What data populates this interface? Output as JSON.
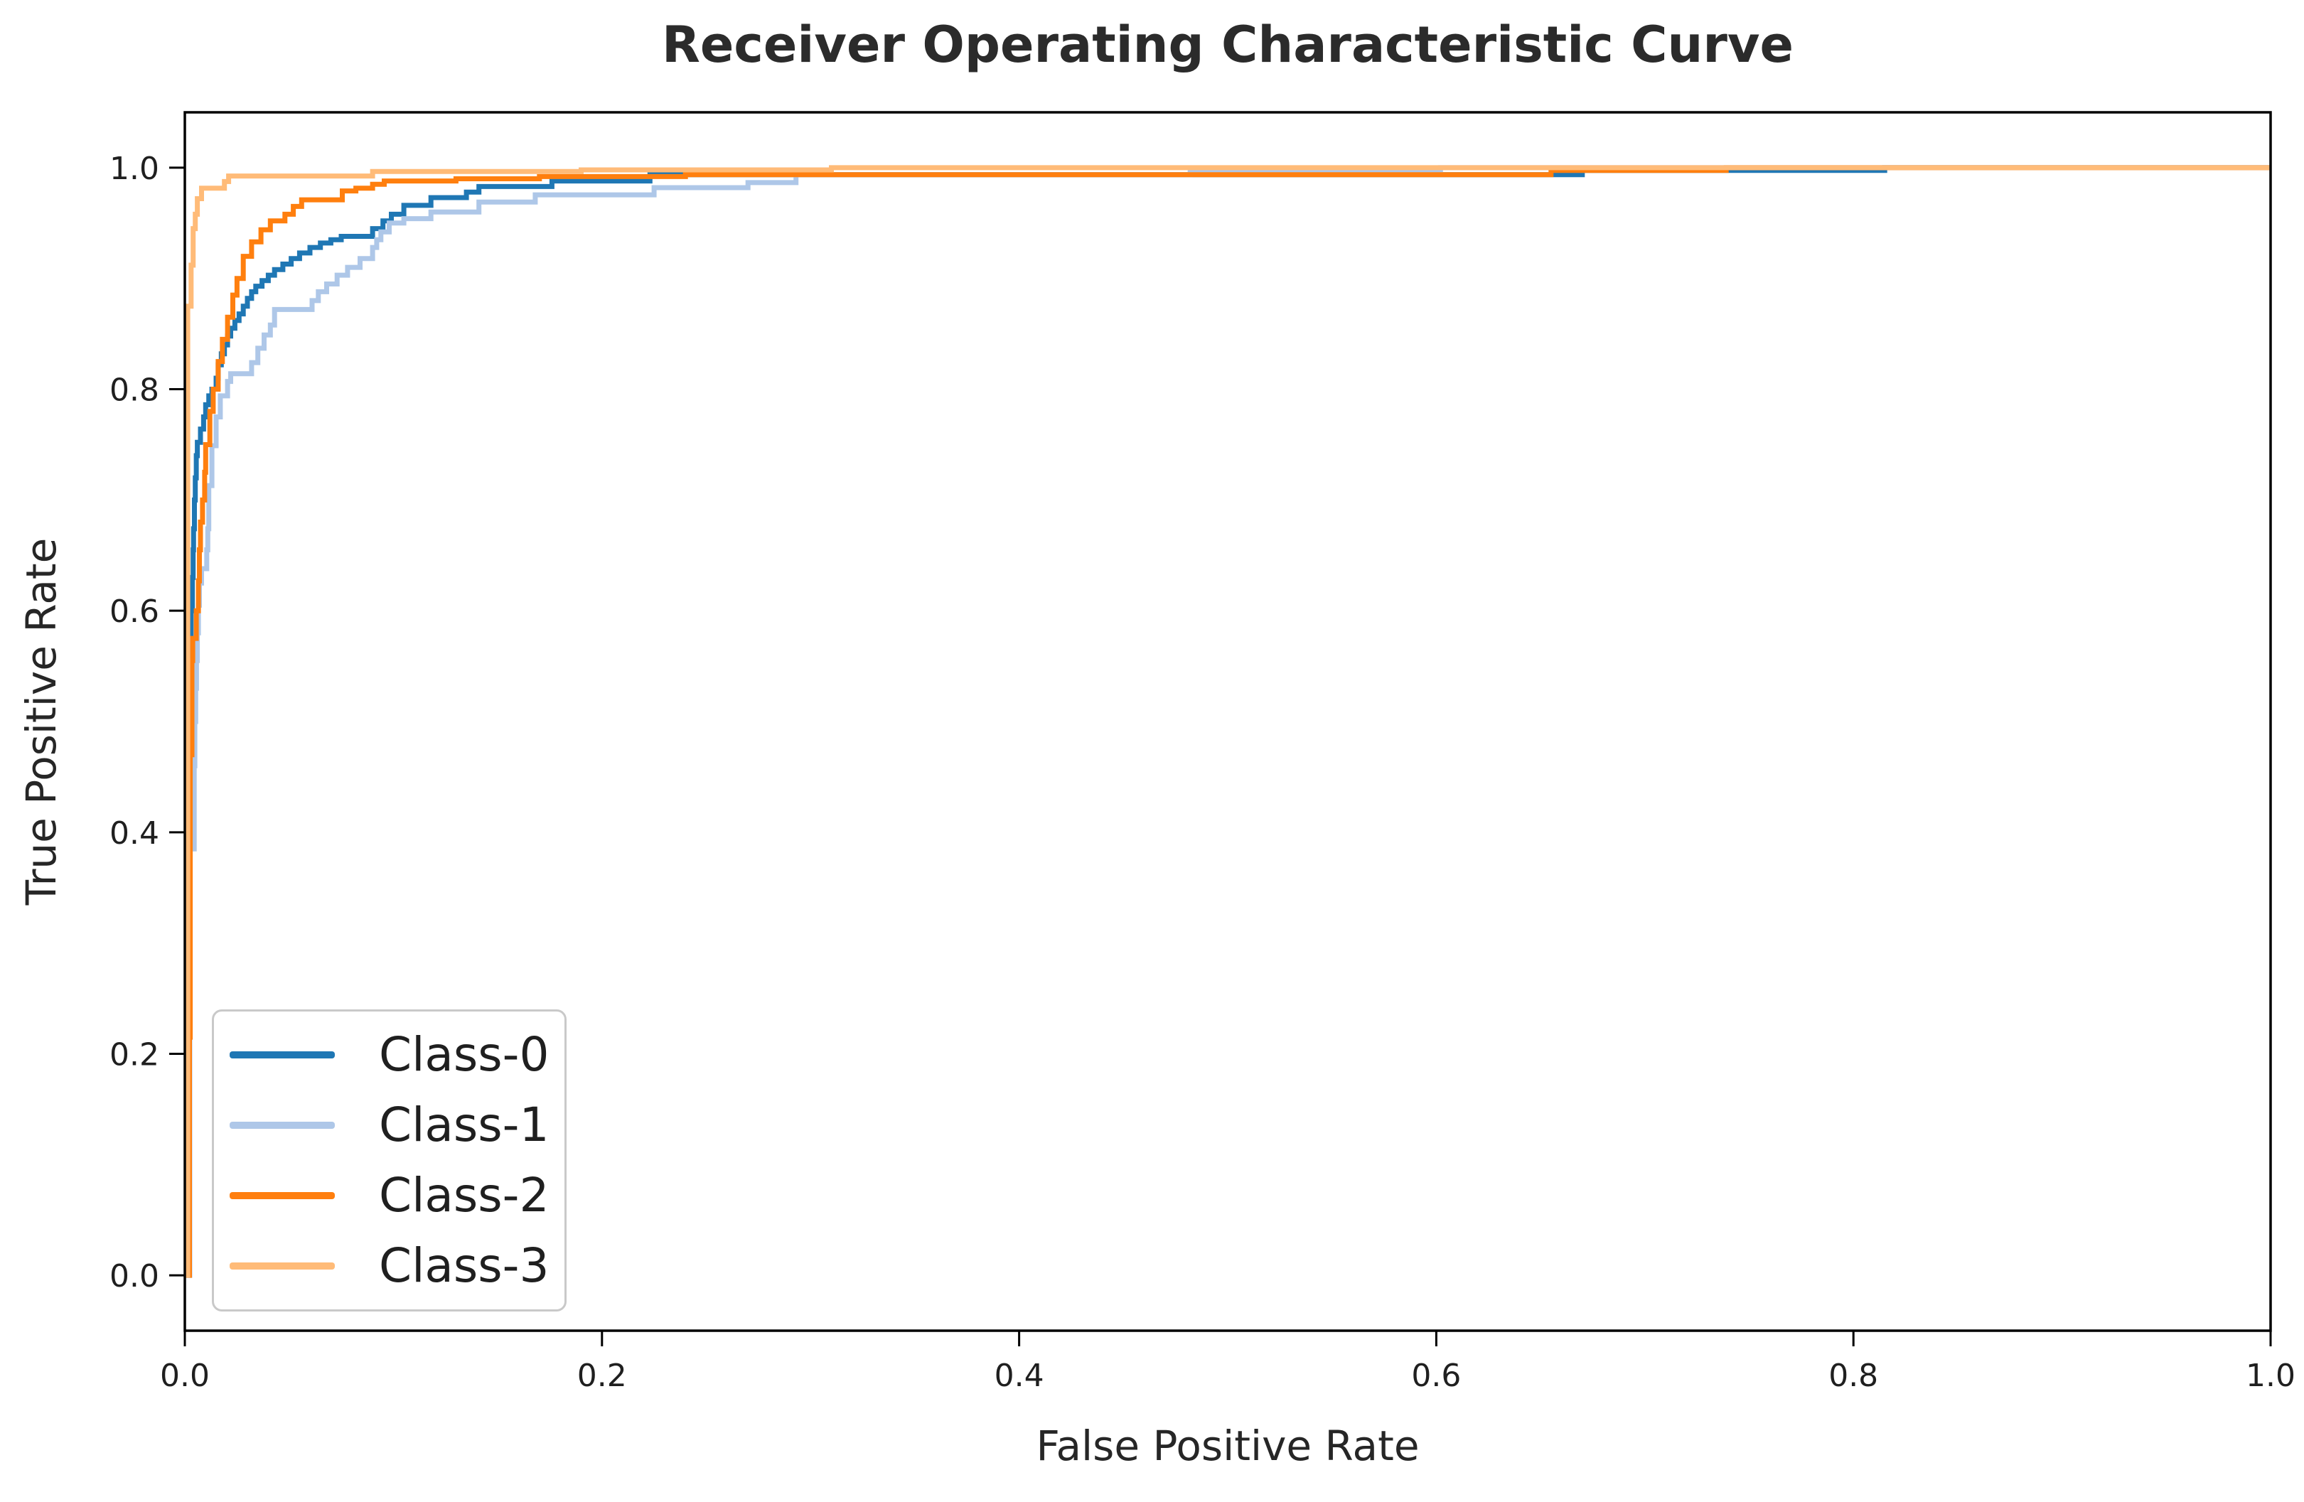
{
  "figure": {
    "title": "Receiver Operating Characteristic Curve",
    "xlabel": "False Positive Rate",
    "ylabel": "True Positive Rate"
  },
  "axes": {
    "x_tick_labels": [
      "0.0",
      "0.2",
      "0.4",
      "0.6",
      "0.8",
      "1.0"
    ],
    "y_tick_labels": [
      "0.0",
      "0.2",
      "0.4",
      "0.6",
      "0.8",
      "1.0"
    ]
  },
  "legend": {
    "position": "lower left",
    "items": [
      {
        "label": "Class-0",
        "color": "#1f77b4"
      },
      {
        "label": "Class-1",
        "color": "#aec7e8"
      },
      {
        "label": "Class-2",
        "color": "#ff7f0e"
      },
      {
        "label": "Class-3",
        "color": "#ffbb78"
      }
    ]
  },
  "colors": {
    "background": "#ffffff",
    "spine": "#000000",
    "text": "#262626",
    "class0": "#1f77b4",
    "class1": "#aec7e8",
    "class2": "#ff7f0e",
    "class3": "#ffbb78"
  },
  "chart_data": {
    "type": "line",
    "subtype": "roc-step-curves",
    "title": "Receiver Operating Characteristic Curve",
    "xlabel": "False Positive Rate",
    "ylabel": "True Positive Rate",
    "xlim": [
      0,
      1
    ],
    "ylim": [
      -0.05,
      1.05
    ],
    "x_ticks": [
      0,
      0.2,
      0.4,
      0.6,
      0.8,
      1.0
    ],
    "y_ticks": [
      0,
      0.2,
      0.4,
      0.6,
      0.8,
      1.0
    ],
    "grid": false,
    "legend_position": "lower left",
    "step_mode": "post",
    "series": [
      {
        "name": "Class-0",
        "color": "#1f77b4",
        "points": [
          [
            0,
            0
          ],
          [
            0.0017,
            0.49
          ],
          [
            0.0019,
            0.545
          ],
          [
            0.0021,
            0.575
          ],
          [
            0.003,
            0.6
          ],
          [
            0.0036,
            0.63
          ],
          [
            0.004,
            0.655
          ],
          [
            0.0042,
            0.674
          ],
          [
            0.0046,
            0.7
          ],
          [
            0.005,
            0.72
          ],
          [
            0.0055,
            0.74
          ],
          [
            0.006,
            0.752
          ],
          [
            0.0075,
            0.764
          ],
          [
            0.009,
            0.775
          ],
          [
            0.01,
            0.786
          ],
          [
            0.0115,
            0.794
          ],
          [
            0.013,
            0.8
          ],
          [
            0.015,
            0.81
          ],
          [
            0.016,
            0.822
          ],
          [
            0.0175,
            0.832
          ],
          [
            0.019,
            0.84
          ],
          [
            0.0205,
            0.848
          ],
          [
            0.022,
            0.855
          ],
          [
            0.024,
            0.862
          ],
          [
            0.026,
            0.868
          ],
          [
            0.028,
            0.875
          ],
          [
            0.03,
            0.882
          ],
          [
            0.032,
            0.888
          ],
          [
            0.034,
            0.893
          ],
          [
            0.037,
            0.898
          ],
          [
            0.04,
            0.903
          ],
          [
            0.043,
            0.908
          ],
          [
            0.047,
            0.913
          ],
          [
            0.051,
            0.918
          ],
          [
            0.055,
            0.923
          ],
          [
            0.06,
            0.928
          ],
          [
            0.065,
            0.932
          ],
          [
            0.07,
            0.935
          ],
          [
            0.075,
            0.938
          ],
          [
            0.09,
            0.945
          ],
          [
            0.095,
            0.952
          ],
          [
            0.099,
            0.958
          ],
          [
            0.105,
            0.966
          ],
          [
            0.118,
            0.973
          ],
          [
            0.135,
            0.978
          ],
          [
            0.141,
            0.983
          ],
          [
            0.176,
            0.988
          ],
          [
            0.223,
            0.9937
          ],
          [
            0.67,
            0.9975
          ],
          [
            0.815,
            1.0
          ],
          [
            1.0,
            1.0
          ]
        ]
      },
      {
        "name": "Class-1",
        "color": "#aec7e8",
        "points": [
          [
            0,
            0
          ],
          [
            0.0024,
            0.385
          ],
          [
            0.0045,
            0.46
          ],
          [
            0.0048,
            0.5
          ],
          [
            0.0052,
            0.53
          ],
          [
            0.0056,
            0.555
          ],
          [
            0.006,
            0.58
          ],
          [
            0.0065,
            0.605
          ],
          [
            0.007,
            0.625
          ],
          [
            0.008,
            0.638
          ],
          [
            0.0105,
            0.655
          ],
          [
            0.011,
            0.674
          ],
          [
            0.0115,
            0.713
          ],
          [
            0.013,
            0.749
          ],
          [
            0.015,
            0.775
          ],
          [
            0.017,
            0.794
          ],
          [
            0.0205,
            0.807
          ],
          [
            0.022,
            0.814
          ],
          [
            0.032,
            0.824
          ],
          [
            0.035,
            0.837
          ],
          [
            0.038,
            0.849
          ],
          [
            0.041,
            0.858
          ],
          [
            0.043,
            0.872
          ],
          [
            0.061,
            0.88
          ],
          [
            0.064,
            0.888
          ],
          [
            0.068,
            0.895
          ],
          [
            0.073,
            0.903
          ],
          [
            0.078,
            0.91
          ],
          [
            0.084,
            0.918
          ],
          [
            0.09,
            0.928
          ],
          [
            0.092,
            0.935
          ],
          [
            0.094,
            0.942
          ],
          [
            0.098,
            0.95
          ],
          [
            0.105,
            0.954
          ],
          [
            0.118,
            0.96
          ],
          [
            0.141,
            0.969
          ],
          [
            0.168,
            0.9755
          ],
          [
            0.225,
            0.982
          ],
          [
            0.27,
            0.9865
          ],
          [
            0.293,
            0.9937
          ],
          [
            0.482,
            0.9963
          ],
          [
            0.602,
            1.0
          ],
          [
            1.0,
            1.0
          ]
        ]
      },
      {
        "name": "Class-2",
        "color": "#ff7f0e",
        "points": [
          [
            0,
            0
          ],
          [
            0.0022,
            0.215
          ],
          [
            0.0026,
            0.47
          ],
          [
            0.0034,
            0.555
          ],
          [
            0.0038,
            0.575
          ],
          [
            0.0055,
            0.6
          ],
          [
            0.0065,
            0.627
          ],
          [
            0.007,
            0.655
          ],
          [
            0.0075,
            0.68
          ],
          [
            0.0085,
            0.7
          ],
          [
            0.0095,
            0.725
          ],
          [
            0.01,
            0.75
          ],
          [
            0.012,
            0.78
          ],
          [
            0.0136,
            0.8
          ],
          [
            0.016,
            0.825
          ],
          [
            0.018,
            0.845
          ],
          [
            0.0205,
            0.865
          ],
          [
            0.023,
            0.885
          ],
          [
            0.025,
            0.9
          ],
          [
            0.028,
            0.92
          ],
          [
            0.032,
            0.933
          ],
          [
            0.0365,
            0.944
          ],
          [
            0.041,
            0.952
          ],
          [
            0.048,
            0.958
          ],
          [
            0.052,
            0.965
          ],
          [
            0.056,
            0.971
          ],
          [
            0.0755,
            0.979
          ],
          [
            0.082,
            0.9815
          ],
          [
            0.09,
            0.985
          ],
          [
            0.0956,
            0.988
          ],
          [
            0.13,
            0.99
          ],
          [
            0.17,
            0.992
          ],
          [
            0.24,
            0.9937
          ],
          [
            0.655,
            0.9975
          ],
          [
            0.739,
            1.0
          ],
          [
            1.0,
            1.0
          ]
        ]
      },
      {
        "name": "Class-3",
        "color": "#ffbb78",
        "points": [
          [
            0,
            0
          ],
          [
            0.0014,
            0.55
          ],
          [
            0.0014,
            0.875
          ],
          [
            0.003,
            0.912
          ],
          [
            0.004,
            0.945
          ],
          [
            0.005,
            0.958
          ],
          [
            0.006,
            0.972
          ],
          [
            0.008,
            0.9815
          ],
          [
            0.019,
            0.9875
          ],
          [
            0.021,
            0.9925
          ],
          [
            0.09,
            0.9966
          ],
          [
            0.19,
            0.998
          ],
          [
            0.31,
            1.0
          ],
          [
            1.0,
            1.0
          ]
        ]
      }
    ]
  }
}
